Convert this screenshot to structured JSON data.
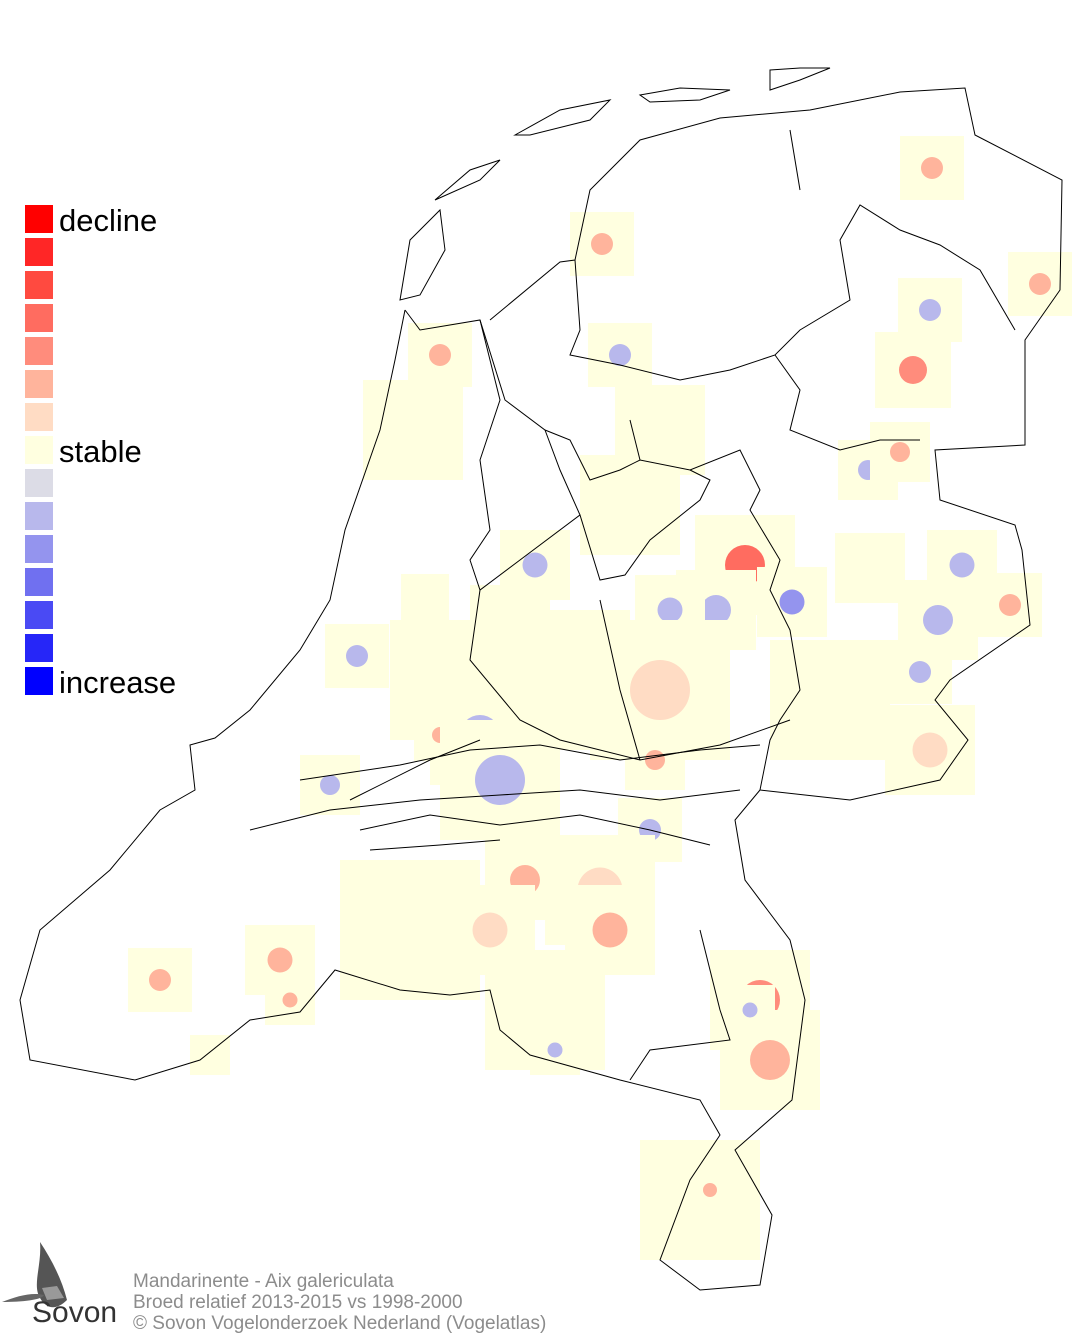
{
  "legend": {
    "labels": {
      "top": "decline",
      "middle": "stable",
      "bottom": "increase"
    },
    "colors": [
      "#ff0000",
      "#ff2626",
      "#ff4a40",
      "#ff6c60",
      "#ff8c7c",
      "#ffb49c",
      "#ffdcc4",
      "#ffffe0",
      "#dcdce6",
      "#b8b8ec",
      "#9494ee",
      "#7070f0",
      "#4a4af4",
      "#2626f8",
      "#0000ff"
    ]
  },
  "footer": {
    "species": "Mandarinente - Aix galericulata",
    "comparison": "Broed relatief 2013-2015 vs 1998-2000",
    "copyright": "© Sovon Vogelonderzoek Nederland (Vogelatlas)"
  },
  "logo": {
    "text": "Sovon"
  },
  "map": {
    "region": "Nederland",
    "border_color": "#000000",
    "background": "#ffffff"
  }
}
